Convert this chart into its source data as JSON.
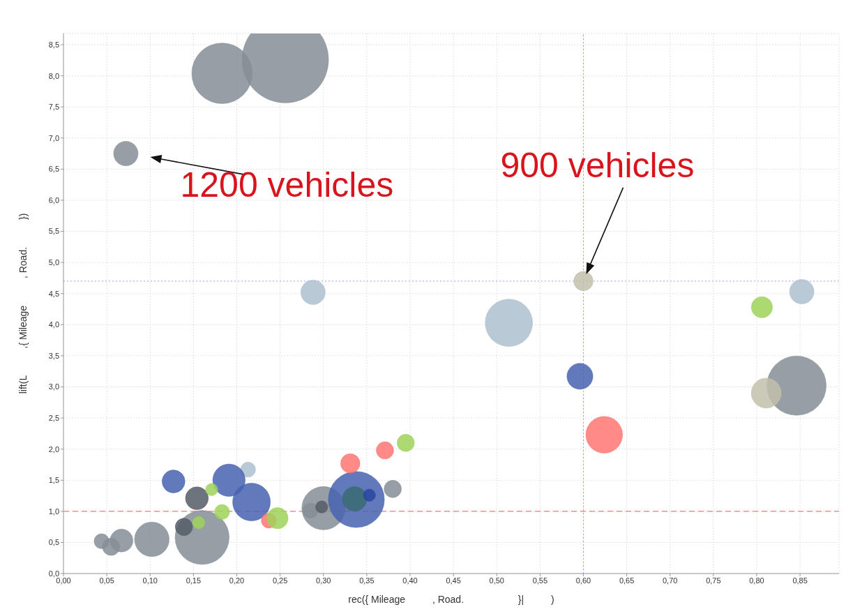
{
  "chart_data": {
    "type": "bubble",
    "xlabel": "rec({ Mileage          , Road.                    }|          )",
    "ylabel": "lift(L          ,{ Mileage          , Road.          })",
    "xlim": [
      0,
      0.895
    ],
    "ylim": [
      0,
      8.68
    ],
    "xticks": [
      {
        "value": 0,
        "label": "0,00"
      },
      {
        "value": 0.05,
        "label": "0,05"
      },
      {
        "value": 0.1,
        "label": "0,10"
      },
      {
        "value": 0.15,
        "label": "0,15"
      },
      {
        "value": 0.2,
        "label": "0,20"
      },
      {
        "value": 0.25,
        "label": "0,25"
      },
      {
        "value": 0.3,
        "label": "0,30"
      },
      {
        "value": 0.35,
        "label": "0,35"
      },
      {
        "value": 0.4,
        "label": "0,40"
      },
      {
        "value": 0.45,
        "label": "0,45"
      },
      {
        "value": 0.5,
        "label": "0,50"
      },
      {
        "value": 0.55,
        "label": "0,55"
      },
      {
        "value": 0.6,
        "label": "0,60"
      },
      {
        "value": 0.65,
        "label": "0,65"
      },
      {
        "value": 0.7,
        "label": "0,70"
      },
      {
        "value": 0.75,
        "label": "0,75"
      },
      {
        "value": 0.8,
        "label": "0,80"
      },
      {
        "value": 0.85,
        "label": "0,85"
      }
    ],
    "yticks": [
      {
        "value": 0,
        "label": "0,0"
      },
      {
        "value": 0.5,
        "label": "0,5"
      },
      {
        "value": 1,
        "label": "1,0"
      },
      {
        "value": 1.5,
        "label": "1,5"
      },
      {
        "value": 2,
        "label": "2,0"
      },
      {
        "value": 2.5,
        "label": "2,5"
      },
      {
        "value": 3,
        "label": "3,0"
      },
      {
        "value": 3.5,
        "label": "3,5"
      },
      {
        "value": 4,
        "label": "4,0"
      },
      {
        "value": 4.5,
        "label": "4,5"
      },
      {
        "value": 5,
        "label": "5,0"
      },
      {
        "value": 5.5,
        "label": "5,5"
      },
      {
        "value": 6,
        "label": "6,0"
      },
      {
        "value": 6.5,
        "label": "6,5"
      },
      {
        "value": 7,
        "label": "7,0"
      },
      {
        "value": 7.5,
        "label": "7,5"
      },
      {
        "value": 8,
        "label": "8,0"
      },
      {
        "value": 8.5,
        "label": "8,5"
      }
    ],
    "grid": true,
    "series": [
      {
        "color": "#868d95",
        "x": [
          0.183,
          0.256,
          0.072,
          0.846,
          0.044,
          0.055,
          0.067,
          0.102,
          0.16,
          0.3,
          0.285,
          0.38
        ],
        "values": [
          8.04,
          8.26,
          6.75,
          3.02,
          0.52,
          0.43,
          0.53,
          0.55,
          0.58,
          1.05,
          1.01,
          1.36
        ],
        "sizes": [
          0.49,
          1,
          0.08,
          0.47,
          0.03,
          0.04,
          0.07,
          0.16,
          0.39,
          0.25,
          0.03,
          0.04
        ]
      },
      {
        "color": "#adbfce",
        "x": [
          0.514,
          0.852,
          0.288,
          0.213
        ],
        "values": [
          4.03,
          4.53,
          4.52,
          1.67
        ],
        "sizes": [
          0.3,
          0.08,
          0.08,
          0.03
        ]
      },
      {
        "color": "#c2bfac",
        "x": [
          0.6,
          0.811
        ],
        "values": [
          4.7,
          2.9
        ],
        "sizes": [
          0.05,
          0.12
        ]
      },
      {
        "color": "#4763b0",
        "x": [
          0.596,
          0.127,
          0.191,
          0.217,
          0.338
        ],
        "values": [
          3.17,
          1.48,
          1.5,
          1.15,
          1.19
        ],
        "sizes": [
          0.09,
          0.07,
          0.14,
          0.19,
          0.42
        ]
      },
      {
        "color": "#535c66",
        "x": [
          0.139,
          0.154,
          0.298
        ],
        "values": [
          0.75,
          1.21,
          1.07
        ],
        "sizes": [
          0.04,
          0.07,
          0.02
        ]
      },
      {
        "color": "#3b6b73",
        "x": [
          0.336
        ],
        "values": [
          1.2
        ],
        "sizes": [
          0.08
        ]
      },
      {
        "color": "#2a45a0",
        "x": [
          0.353
        ],
        "values": [
          1.26
        ],
        "sizes": [
          0.02
        ]
      },
      {
        "color": "#ff7672",
        "x": [
          0.624,
          0.237,
          0.331,
          0.371
        ],
        "values": [
          2.23,
          0.85,
          1.77,
          1.98
        ],
        "sizes": [
          0.18,
          0.03,
          0.05,
          0.04
        ]
      },
      {
        "color": "#9fd25b",
        "x": [
          0.806,
          0.156,
          0.171,
          0.183,
          0.247,
          0.395
        ],
        "values": [
          4.28,
          0.82,
          1.35,
          0.99,
          0.89,
          2.1
        ],
        "sizes": [
          0.06,
          0.02,
          0.02,
          0.03,
          0.06,
          0.04
        ]
      }
    ],
    "ref_lines": [
      {
        "axis": "y",
        "value": 1,
        "color": "#ff5555",
        "line_style": "dashed"
      },
      {
        "axis": "y",
        "value": 4.7,
        "color": "#9999ff",
        "line_style": "dotted"
      },
      {
        "axis": "x",
        "value": 0.6,
        "color": "#9999ff",
        "line_style": "dotted"
      }
    ],
    "annotations": [
      {
        "text": "1200 vehicles",
        "x": 0.072,
        "y": 6.75
      },
      {
        "text": "900 vehicles",
        "x": 0.6,
        "y": 4.7
      }
    ]
  }
}
